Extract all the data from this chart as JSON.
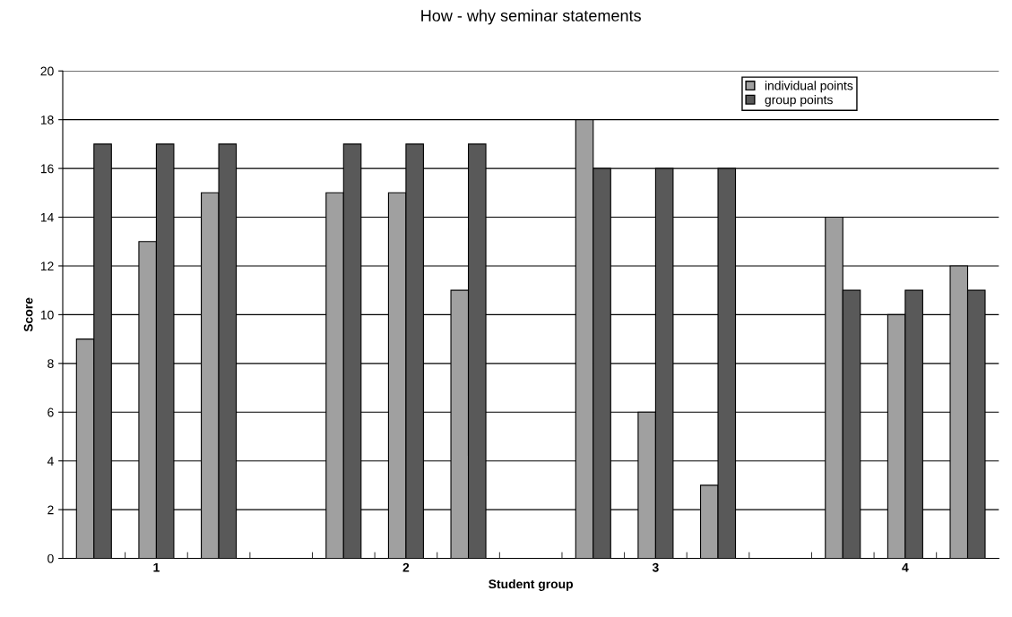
{
  "chart_data": {
    "type": "bar",
    "title": "How - why seminar statements",
    "xlabel": "Student group",
    "ylabel": "Score",
    "categories": [
      null,
      "1",
      null,
      null,
      null,
      "2",
      null,
      null,
      null,
      "3",
      null,
      null,
      null,
      "4",
      null
    ],
    "series": [
      {
        "name": "individual points",
        "color": "#a0a0a0",
        "values": [
          9,
          13,
          15,
          null,
          15,
          15,
          11,
          null,
          18,
          6,
          3,
          null,
          14,
          10,
          12
        ]
      },
      {
        "name": "group points",
        "color": "#595959",
        "values": [
          17,
          17,
          17,
          null,
          17,
          17,
          17,
          null,
          16,
          16,
          16,
          null,
          11,
          11,
          11
        ]
      }
    ],
    "ylim": [
      0,
      20
    ],
    "yticks": [
      0,
      2,
      4,
      6,
      8,
      10,
      12,
      14,
      16,
      18,
      20
    ],
    "grid": "y",
    "legend": "top right"
  }
}
